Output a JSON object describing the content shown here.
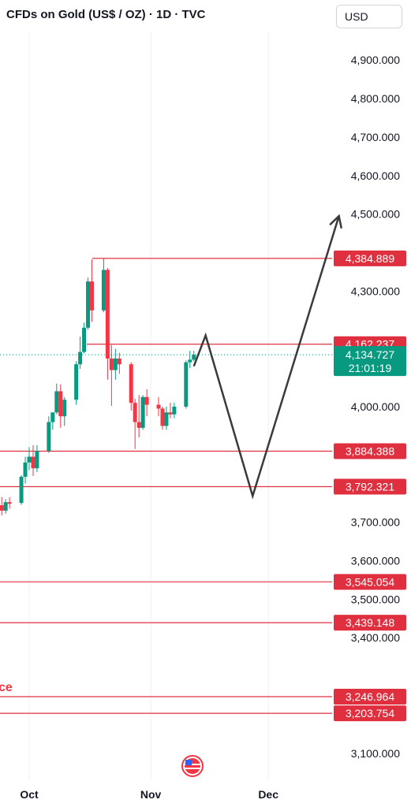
{
  "header": {
    "title": "CFDs on Gold (US$ / OZ) · 1D · TVC",
    "currency": "USD"
  },
  "colors": {
    "up": "#089981",
    "down": "#f23645",
    "level_line": "#e03040",
    "projection": "#3a3a3a",
    "axis_text": "#131722"
  },
  "annotation_text": "ce",
  "current_price": {
    "value": 4134.727,
    "label": "4,134.727",
    "countdown": "21:01:19"
  },
  "chart_data": {
    "type": "candlestick",
    "y_axis": {
      "range": [
        3060,
        4970
      ],
      "ticks": [
        3100,
        3400,
        3500,
        3600,
        3700,
        4000,
        4300,
        4500,
        4600,
        4700,
        4800,
        4900
      ],
      "tick_labels": [
        "3,100.000",
        "3,400.000",
        "3,500.000",
        "3,600.000",
        "3,700.000",
        "4,000.000",
        "4,300.000",
        "4,500.000",
        "4,600.000",
        "4,700.000",
        "4,800.000",
        "4,900.000"
      ]
    },
    "x_axis": {
      "ticks": [
        {
          "label": "Oct",
          "date": "2025-10-01"
        },
        {
          "label": "Nov",
          "date": "2025-11-01"
        },
        {
          "label": "Dec",
          "date": "2025-12-01"
        }
      ]
    },
    "candles": [
      {
        "date": "2025-09-24",
        "open": 3744,
        "high": 3765,
        "low": 3718,
        "close": 3730
      },
      {
        "date": "2025-09-25",
        "open": 3730,
        "high": 3760,
        "low": 3722,
        "close": 3752
      },
      {
        "date": "2025-09-26",
        "open": 3752,
        "high": 3765,
        "low": 3735,
        "close": 3748
      },
      {
        "date": "2025-09-29",
        "open": 3750,
        "high": 3822,
        "low": 3745,
        "close": 3818
      },
      {
        "date": "2025-09-30",
        "open": 3818,
        "high": 3870,
        "low": 3800,
        "close": 3855
      },
      {
        "date": "2025-10-01",
        "open": 3855,
        "high": 3895,
        "low": 3835,
        "close": 3870
      },
      {
        "date": "2025-10-02",
        "open": 3870,
        "high": 3900,
        "low": 3820,
        "close": 3840
      },
      {
        "date": "2025-10-03",
        "open": 3840,
        "high": 3900,
        "low": 3830,
        "close": 3885
      },
      {
        "date": "2025-10-06",
        "open": 3885,
        "high": 3975,
        "low": 3880,
        "close": 3960
      },
      {
        "date": "2025-10-07",
        "open": 3960,
        "high": 3985,
        "low": 3940,
        "close": 3985
      },
      {
        "date": "2025-10-08",
        "open": 3985,
        "high": 4060,
        "low": 3980,
        "close": 4040
      },
      {
        "date": "2025-10-09",
        "open": 4040,
        "high": 4058,
        "low": 3945,
        "close": 3975
      },
      {
        "date": "2025-10-10",
        "open": 3975,
        "high": 4025,
        "low": 3950,
        "close": 4018
      },
      {
        "date": "2025-10-13",
        "open": 4018,
        "high": 4118,
        "low": 4005,
        "close": 4110
      },
      {
        "date": "2025-10-14",
        "open": 4110,
        "high": 4182,
        "low": 4098,
        "close": 4142
      },
      {
        "date": "2025-10-15",
        "open": 4142,
        "high": 4218,
        "low": 4138,
        "close": 4205
      },
      {
        "date": "2025-10-16",
        "open": 4205,
        "high": 4335,
        "low": 4200,
        "close": 4325
      },
      {
        "date": "2025-10-17",
        "open": 4325,
        "high": 4382,
        "low": 4220,
        "close": 4250
      },
      {
        "date": "2025-10-20",
        "open": 4250,
        "high": 4385,
        "low": 4245,
        "close": 4355
      },
      {
        "date": "2025-10-21",
        "open": 4355,
        "high": 4360,
        "low": 4070,
        "close": 4125
      },
      {
        "date": "2025-10-22",
        "open": 4125,
        "high": 4160,
        "low": 4002,
        "close": 4095
      },
      {
        "date": "2025-10-23",
        "open": 4095,
        "high": 4150,
        "low": 4070,
        "close": 4125
      },
      {
        "date": "2025-10-24",
        "open": 4125,
        "high": 4140,
        "low": 4085,
        "close": 4110
      },
      {
        "date": "2025-10-27",
        "open": 4110,
        "high": 4115,
        "low": 3990,
        "close": 4010
      },
      {
        "date": "2025-10-28",
        "open": 4010,
        "high": 4020,
        "low": 3890,
        "close": 3960
      },
      {
        "date": "2025-10-29",
        "open": 3960,
        "high": 4030,
        "low": 3920,
        "close": 3945
      },
      {
        "date": "2025-10-30",
        "open": 3945,
        "high": 4030,
        "low": 3940,
        "close": 4025
      },
      {
        "date": "2025-10-31",
        "open": 4025,
        "high": 4045,
        "low": 3975,
        "close": 4005
      },
      {
        "date": "2025-11-03",
        "open": 4005,
        "high": 4025,
        "low": 3975,
        "close": 3995
      },
      {
        "date": "2025-11-04",
        "open": 3995,
        "high": 4000,
        "low": 3940,
        "close": 3950
      },
      {
        "date": "2025-11-05",
        "open": 3950,
        "high": 4000,
        "low": 3940,
        "close": 3985
      },
      {
        "date": "2025-11-06",
        "open": 3985,
        "high": 4010,
        "low": 3970,
        "close": 3980
      },
      {
        "date": "2025-11-07",
        "open": 3980,
        "high": 4010,
        "low": 3970,
        "close": 4000
      },
      {
        "date": "2025-11-10",
        "open": 4000,
        "high": 4120,
        "low": 3995,
        "close": 4115
      },
      {
        "date": "2025-11-11",
        "open": 4115,
        "high": 4145,
        "low": 4100,
        "close": 4122
      },
      {
        "date": "2025-11-12",
        "open": 4122,
        "high": 4145,
        "low": 4118,
        "close": 4135
      }
    ],
    "levels": [
      {
        "value": 4384.889,
        "label": "4,384.889"
      },
      {
        "value": 4162.237,
        "label": "4,162.237"
      },
      {
        "value": 3884.388,
        "label": "3,884.388"
      },
      {
        "value": 3792.321,
        "label": "3,792.321"
      },
      {
        "value": 3545.054,
        "label": "3,545.054"
      },
      {
        "value": 3439.148,
        "label": "3,439.148"
      },
      {
        "value": 3246.964,
        "label": "3,246.964"
      },
      {
        "value": 3203.754,
        "label": "3,203.754"
      }
    ],
    "projection_path": [
      {
        "date": "2025-11-12",
        "price": 4105
      },
      {
        "date": "2025-11-15",
        "price": 4185
      },
      {
        "date": "2025-11-27",
        "price": 3768
      },
      {
        "date": "2025-12-19",
        "price": 4495
      }
    ]
  }
}
